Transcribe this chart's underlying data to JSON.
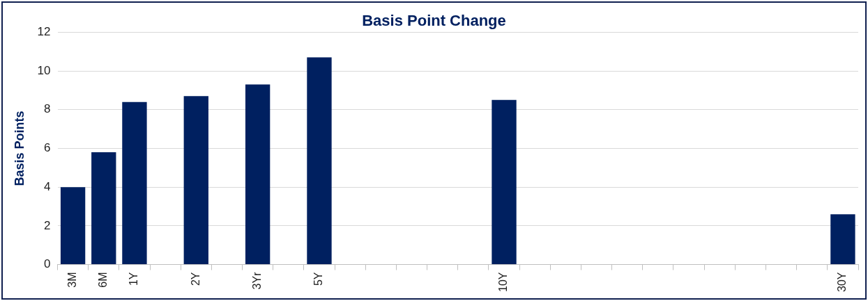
{
  "chart_data": {
    "type": "bar",
    "title": "Basis Point Change",
    "ylabel": "Basis Points",
    "categories": [
      "3M",
      "6M",
      "1Y",
      null,
      "2Y",
      null,
      "3Yr",
      null,
      "5Y",
      null,
      null,
      null,
      null,
      null,
      "10Y",
      null,
      null,
      null,
      null,
      null,
      null,
      null,
      null,
      null,
      null,
      "30Y"
    ],
    "values": [
      4.0,
      5.8,
      8.4,
      null,
      8.7,
      null,
      9.3,
      null,
      10.7,
      null,
      null,
      null,
      null,
      null,
      8.5,
      null,
      null,
      null,
      null,
      null,
      null,
      null,
      null,
      null,
      null,
      2.6
    ],
    "color": "#002060",
    "ylim": [
      0,
      12
    ],
    "yticks": [
      0,
      2,
      4,
      6,
      8,
      10,
      12
    ],
    "grid": "y",
    "legend": false
  }
}
